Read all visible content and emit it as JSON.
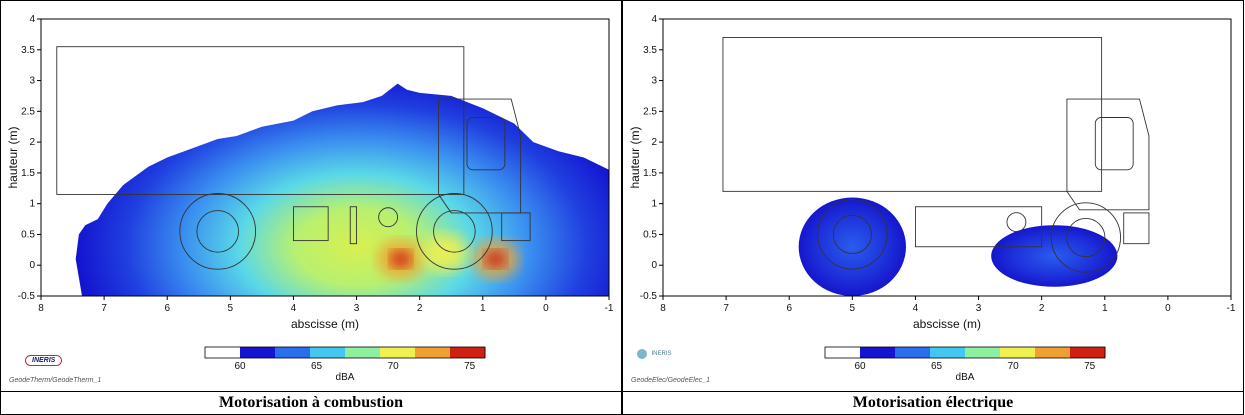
{
  "captions": {
    "left": "Motorisation à combustion",
    "right": "Motorisation électrique"
  },
  "logos": {
    "left": "INERIS",
    "right": "INERIS"
  },
  "file_labels": {
    "left": "GeodeTherm/GeodeTherm_1",
    "right": "GeodeElec/GeodeElec_1"
  },
  "colorbar": {
    "unit": "dBA",
    "ticks": [
      60,
      65,
      70,
      75
    ],
    "range": [
      60,
      76
    ],
    "colors": [
      "#ffffff",
      "#1414d2",
      "#2a6ef0",
      "#42c8f0",
      "#8cf0a0",
      "#f0f050",
      "#f0a030",
      "#d02010"
    ]
  },
  "chart_data": [
    {
      "type": "heatmap",
      "title": "",
      "xlabel": "abscisse (m)",
      "ylabel": "hauteur (m)",
      "xlim": [
        8,
        -1
      ],
      "ylim": [
        -0.5,
        4
      ],
      "xticks": [
        8,
        7,
        6,
        5,
        4,
        3,
        2,
        1,
        0,
        -1
      ],
      "yticks": [
        -0.5,
        0,
        0.5,
        1,
        1.5,
        2,
        2.5,
        3,
        3.5,
        4
      ],
      "xtick_labels": [
        "8",
        "7",
        "6",
        "5",
        "4",
        "3",
        "2",
        "1",
        "0",
        "-1"
      ],
      "ytick_labels": [
        "-0.5",
        "0",
        "0.5",
        "1",
        "1.5",
        "2",
        "2.5",
        "3",
        "3.5",
        "4"
      ],
      "noise_envelope_60dBA": [
        [
          7.35,
          -0.5
        ],
        [
          7.45,
          0.1
        ],
        [
          7.4,
          0.5
        ],
        [
          7.3,
          0.65
        ],
        [
          7.1,
          0.75
        ],
        [
          6.95,
          1.0
        ],
        [
          6.7,
          1.3
        ],
        [
          6.3,
          1.6
        ],
        [
          6.0,
          1.75
        ],
        [
          5.6,
          1.9
        ],
        [
          5.2,
          2.05
        ],
        [
          4.9,
          2.1
        ],
        [
          4.5,
          2.25
        ],
        [
          4.0,
          2.35
        ],
        [
          3.7,
          2.5
        ],
        [
          3.3,
          2.6
        ],
        [
          2.9,
          2.65
        ],
        [
          2.6,
          2.75
        ],
        [
          2.35,
          2.95
        ],
        [
          2.2,
          2.85
        ],
        [
          2.0,
          2.8
        ],
        [
          1.5,
          2.75
        ],
        [
          1.0,
          2.55
        ],
        [
          0.8,
          2.45
        ],
        [
          0.5,
          2.3
        ],
        [
          0.2,
          2.0
        ],
        [
          -0.2,
          1.85
        ],
        [
          -0.6,
          1.75
        ],
        [
          -1.0,
          1.55
        ],
        [
          -1.0,
          -0.5
        ]
      ],
      "hotspots": [
        {
          "x": 2.3,
          "y": 0.1,
          "level": 75
        },
        {
          "x": 0.8,
          "y": 0.1,
          "level": 75
        },
        {
          "x": 1.6,
          "y": 0.2,
          "level": 72
        }
      ],
      "truck_outline": {
        "cargo_box": {
          "x0": 7.75,
          "x1": 1.3,
          "y0": 1.15,
          "y1": 3.55
        },
        "rear_wheel": {
          "x": 5.2,
          "y": 0.55,
          "r": 0.6
        },
        "front_wheel": {
          "x": 1.45,
          "y": 0.55,
          "r": 0.6
        },
        "components": [
          {
            "x0": 4.0,
            "x1": 3.45,
            "y0": 0.4,
            "y1": 0.95
          },
          {
            "x0": 3.1,
            "x1": 3.0,
            "y0": 0.35,
            "y1": 0.95
          },
          {
            "x0": 0.7,
            "x1": 0.25,
            "y0": 0.4,
            "y1": 0.85
          }
        ],
        "small_circle": {
          "x": 2.5,
          "y": 0.78,
          "r": 0.15
        },
        "cab": {
          "x0": 1.7,
          "x1": 0.4,
          "y0": 1.15,
          "y1": 2.7
        }
      }
    },
    {
      "type": "heatmap",
      "title": "",
      "xlabel": "abscisse (m)",
      "ylabel": "hauteur (m)",
      "xlim": [
        8,
        -1
      ],
      "ylim": [
        -0.5,
        4
      ],
      "xticks": [
        8,
        7,
        6,
        5,
        4,
        3,
        2,
        1,
        0,
        -1
      ],
      "yticks": [
        -0.5,
        0,
        0.5,
        1,
        1.5,
        2,
        2.5,
        3,
        3.5,
        4
      ],
      "xtick_labels": [
        "8",
        "7",
        "6",
        "5",
        "4",
        "3",
        "2",
        "1",
        "0",
        "-1"
      ],
      "ytick_labels": [
        "-0.5",
        "0",
        "0.5",
        "1",
        "1.5",
        "2",
        "2.5",
        "3",
        "3.5",
        "4"
      ],
      "noise_blobs": [
        {
          "x": 5.0,
          "y": 0.3,
          "rx": 0.85,
          "ry": 0.8,
          "peak": 64
        },
        {
          "x": 1.8,
          "y": 0.15,
          "rx": 1.0,
          "ry": 0.5,
          "peak": 63
        }
      ],
      "truck_outline": {
        "cargo_box": {
          "x0": 7.05,
          "x1": 1.05,
          "y0": 1.2,
          "y1": 3.7
        },
        "rear_wheel": {
          "x": 5.0,
          "y": 0.5,
          "r": 0.55
        },
        "front_wheel": {
          "x": 1.3,
          "y": 0.45,
          "r": 0.55
        },
        "components": [
          {
            "x0": 4.0,
            "x1": 2.0,
            "y0": 0.3,
            "y1": 0.95
          },
          {
            "x0": 0.7,
            "x1": 0.3,
            "y0": 0.35,
            "y1": 0.85
          }
        ],
        "small_circle": {
          "x": 2.4,
          "y": 0.7,
          "r": 0.15
        },
        "cab": {
          "x0": 1.6,
          "x1": 0.3,
          "y0": 1.2,
          "y1": 2.7
        }
      }
    }
  ]
}
